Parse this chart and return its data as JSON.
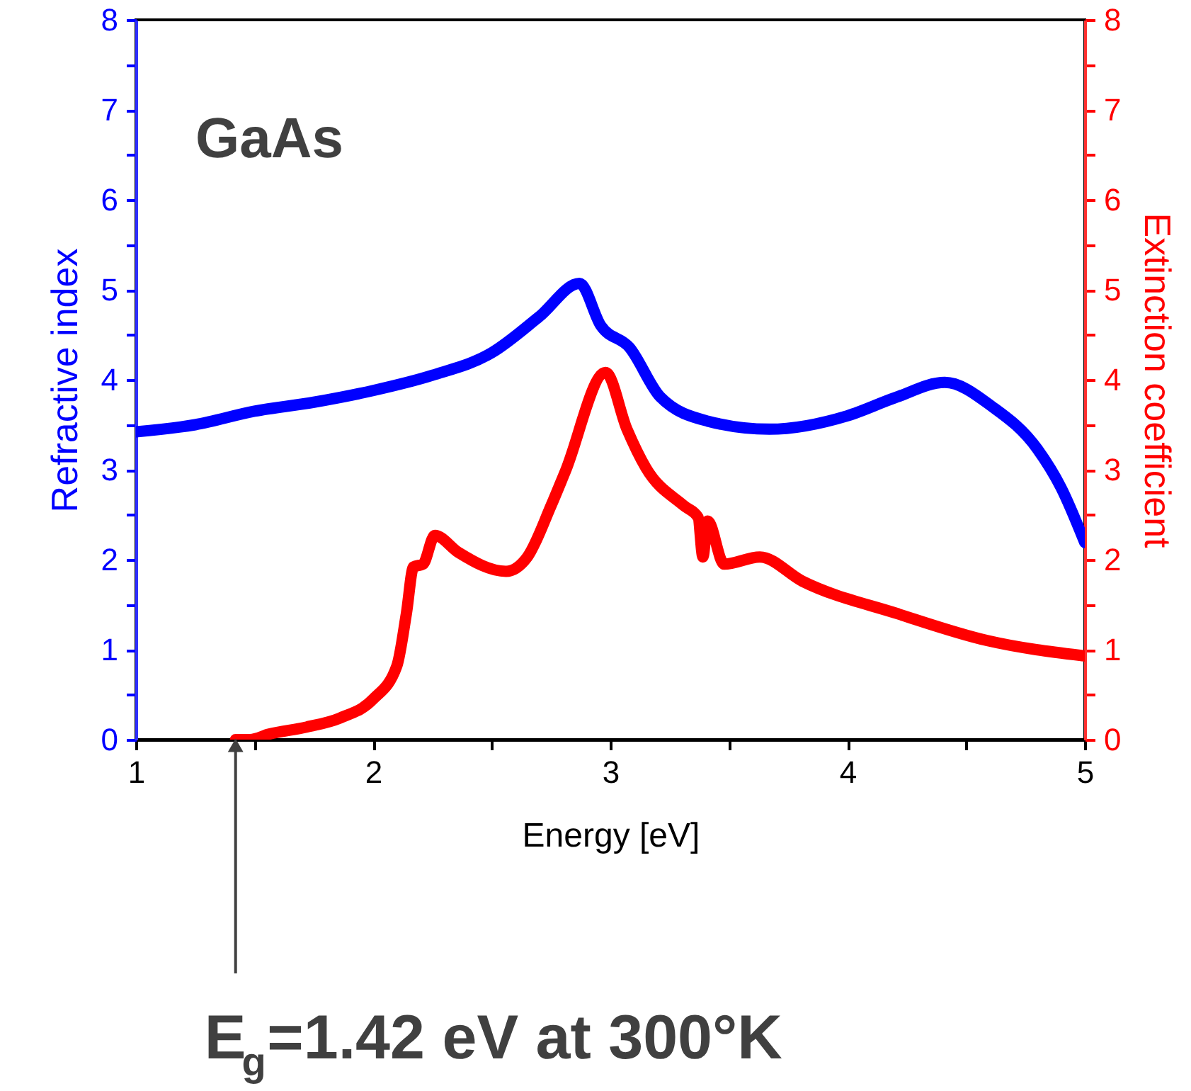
{
  "chart_data": {
    "type": "line",
    "title": "GaAs",
    "xlabel": "Energy [eV]",
    "ylabel": "Refractive index",
    "y2label": "Extinction coefficient",
    "xlim": [
      1,
      5
    ],
    "xticks": [
      1,
      {
        "value": 1.5,
        "label": null
      },
      2,
      {
        "value": 2.5,
        "label": null
      },
      3,
      {
        "value": 3.5,
        "label": null
      },
      4,
      {
        "value": 4.5,
        "label": null
      },
      5
    ],
    "ylim": [
      0,
      8
    ],
    "yticks": [
      0,
      {
        "value": 0.5,
        "label": null
      },
      1,
      {
        "value": 1.5,
        "label": null
      },
      2,
      {
        "value": 2.5,
        "label": null
      },
      3,
      {
        "value": 3.5,
        "label": null
      },
      4,
      {
        "value": 4.5,
        "label": null
      },
      5,
      {
        "value": 5.5,
        "label": null
      },
      6,
      {
        "value": 6.5,
        "label": null
      },
      7,
      {
        "value": 7.5,
        "label": null
      },
      8
    ],
    "y2lim": [
      0,
      8
    ],
    "y2ticks": [
      0,
      {
        "value": 0.5,
        "label": null
      },
      1,
      {
        "value": 1.5,
        "label": null
      },
      2,
      {
        "value": 2.5,
        "label": null
      },
      3,
      {
        "value": 3.5,
        "label": null
      },
      4,
      {
        "value": 4.5,
        "label": null
      },
      5,
      {
        "value": 5.5,
        "label": null
      },
      6,
      {
        "value": 6.5,
        "label": null
      },
      7,
      {
        "value": 7.5,
        "label": null
      },
      8
    ],
    "grid": false,
    "line_style": "solid",
    "series": [
      {
        "color": "#0000ff",
        "axis": "y",
        "x": [
          1.0,
          1.25,
          1.5,
          1.75,
          2.0,
          2.25,
          2.5,
          2.7,
          2.87,
          2.96,
          3.08,
          3.21,
          3.41,
          3.67,
          4.0,
          4.2,
          4.41,
          4.61,
          4.8,
          4.9,
          5.0
        ],
        "values": [
          3.42,
          3.5,
          3.65,
          3.75,
          3.88,
          4.05,
          4.3,
          4.7,
          5.07,
          4.6,
          4.36,
          3.81,
          3.54,
          3.45,
          3.6,
          3.8,
          3.97,
          3.7,
          3.23,
          2.8,
          2.19
        ]
      },
      {
        "color": "#ff0000",
        "axis": "y2",
        "x": [
          1.42,
          1.48,
          1.56,
          1.72,
          1.86,
          2.0,
          2.1,
          2.14,
          2.17,
          2.21,
          2.26,
          2.36,
          2.56,
          2.65,
          2.75,
          2.81,
          2.98,
          3.07,
          3.15,
          3.31,
          3.37,
          3.39,
          3.41,
          3.48,
          3.63,
          3.81,
          4.21,
          4.59,
          5.0
        ],
        "values": [
          0,
          0,
          0.06,
          0.14,
          0.24,
          0.45,
          0.82,
          1.4,
          1.92,
          1.95,
          2.27,
          2.08,
          1.87,
          2.03,
          2.6,
          2.98,
          4.08,
          3.45,
          3.02,
          2.6,
          2.47,
          2.03,
          2.43,
          1.95,
          2.03,
          1.76,
          1.4,
          1.1,
          0.93
        ]
      }
    ],
    "annotations": [
      {
        "text": "E$_{g}$=1.42 eV at 300°K",
        "x": 1.42,
        "y": 0
      }
    ]
  }
}
